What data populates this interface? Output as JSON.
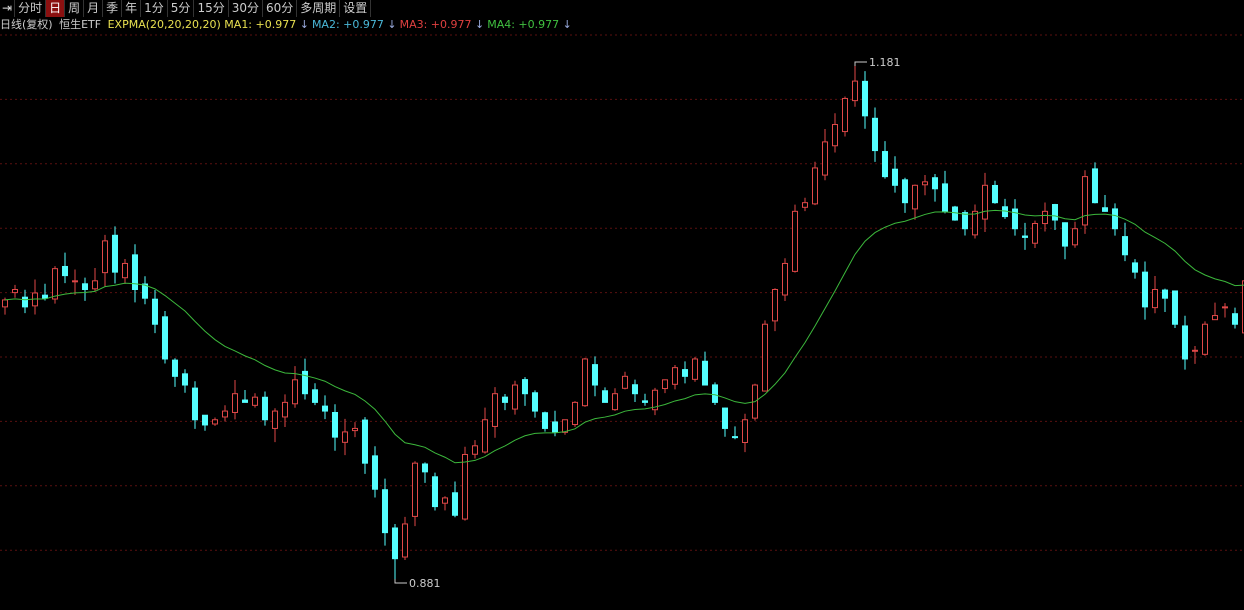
{
  "toolbar": {
    "first_icon": "collapse-icon",
    "items": [
      "分时",
      "日",
      "周",
      "月",
      "季",
      "年",
      "1分",
      "5分",
      "15分",
      "30分",
      "60分",
      "多周期",
      "设置"
    ],
    "active": "日"
  },
  "legend": {
    "period": "日线(复权)",
    "name": "恒生ETF",
    "indicator": "EXPMA(20,20,20,20)",
    "ma": [
      {
        "label": "MA1: +0.977",
        "color": "#e8e050"
      },
      {
        "label": "MA2: +0.977",
        "color": "#4ab8d8"
      },
      {
        "label": "MA3: +0.977",
        "color": "#e04040"
      },
      {
        "label": "MA4: +0.977",
        "color": "#40c040"
      }
    ],
    "arrow": "↓"
  },
  "colors": {
    "up": "#e04848",
    "down": "#54ffff",
    "ema": "#3cb83c",
    "grid": "#5a1010"
  },
  "chart_data": {
    "type": "candlestick",
    "ylim": [
      0.881,
      1.181
    ],
    "annotations": {
      "high": "1.181",
      "low": "0.881",
      "high_index": 85,
      "low_index": 39
    },
    "ema_period": 20,
    "close": [
      1.044,
      1.05,
      1.04,
      1.048,
      1.045,
      1.062,
      1.058,
      1.055,
      1.05,
      1.055,
      1.078,
      1.06,
      1.065,
      1.05,
      1.045,
      1.03,
      1.01,
      1.0,
      0.995,
      0.975,
      0.972,
      0.975,
      0.98,
      0.99,
      0.985,
      0.988,
      0.975,
      0.98,
      0.985,
      0.998,
      0.99,
      0.985,
      0.98,
      0.965,
      0.968,
      0.97,
      0.95,
      0.935,
      0.91,
      0.895,
      0.915,
      0.95,
      0.945,
      0.925,
      0.93,
      0.92,
      0.955,
      0.96,
      0.975,
      0.99,
      0.985,
      0.995,
      0.99,
      0.98,
      0.97,
      0.968,
      0.975,
      0.985,
      1.01,
      0.995,
      0.985,
      0.99,
      1.0,
      0.99,
      0.985,
      0.992,
      0.998,
      1.005,
      1.0,
      1.01,
      0.995,
      0.985,
      0.97,
      0.965,
      0.975,
      0.995,
      1.03,
      1.05,
      1.065,
      1.095,
      1.1,
      1.12,
      1.135,
      1.145,
      1.16,
      1.17,
      1.15,
      1.13,
      1.115,
      1.11,
      1.1,
      1.11,
      1.112,
      1.108,
      1.095,
      1.09,
      1.085,
      1.095,
      1.11,
      1.1,
      1.092,
      1.085,
      1.08,
      1.088,
      1.095,
      1.09,
      1.075,
      1.085,
      1.115,
      1.1,
      1.095,
      1.085,
      1.07,
      1.06,
      1.04,
      1.05,
      1.045,
      1.03,
      1.01,
      1.015,
      1.03,
      1.035,
      1.04,
      1.03,
      1.055
    ]
  }
}
